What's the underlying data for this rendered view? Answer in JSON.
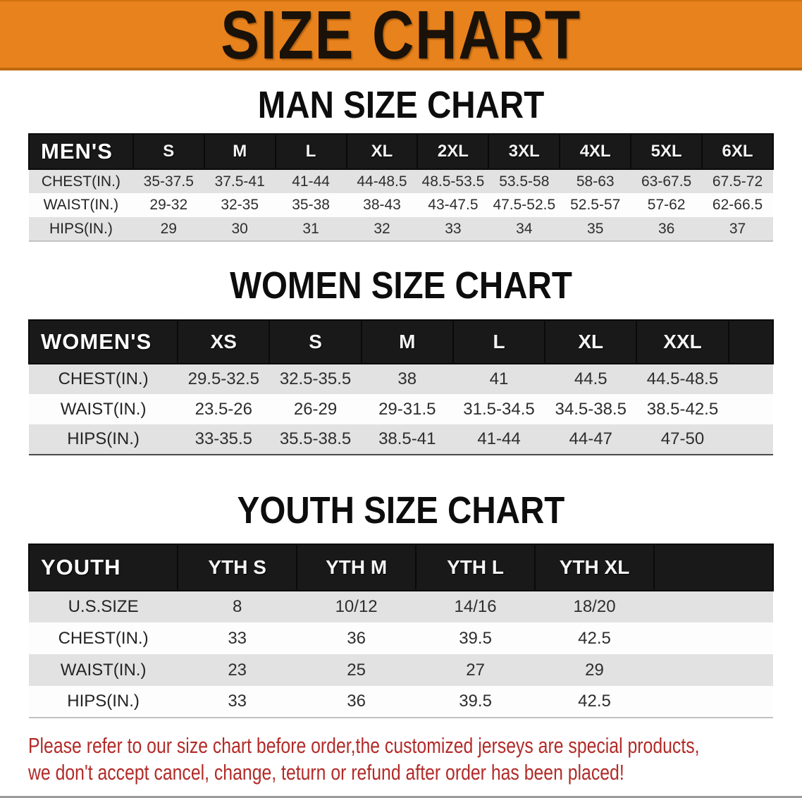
{
  "banner": {
    "title": "SIZE CHART"
  },
  "colors": {
    "banner_orange": "#E8821D",
    "banner_edge": "#BF6A10",
    "table_header_black": "#191919",
    "stripe_gray": "#E2E2E2",
    "stripe_white": "#FDFDFD",
    "disclaimer_red": "#B22B28"
  },
  "sections": [
    {
      "heading": "MAN SIZE CHART",
      "corner_label": "MEN'S",
      "columns": [
        "S",
        "M",
        "L",
        "XL",
        "2XL",
        "3XL",
        "4XL",
        "5XL",
        "6XL"
      ],
      "rows": [
        {
          "label": "CHEST(IN.)",
          "values": [
            "35-37.5",
            "37.5-41",
            "41-44",
            "44-48.5",
            "48.5-53.5",
            "53.5-58",
            "58-63",
            "63-67.5",
            "67.5-72"
          ]
        },
        {
          "label": "WAIST(IN.)",
          "values": [
            "29-32",
            "32-35",
            "35-38",
            "38-43",
            "43-47.5",
            "47.5-52.5",
            "52.5-57",
            "57-62",
            "62-66.5"
          ]
        },
        {
          "label": "HIPS(IN.)",
          "values": [
            "29",
            "30",
            "31",
            "32",
            "33",
            "34",
            "35",
            "36",
            "37"
          ]
        }
      ]
    },
    {
      "heading": "WOMEN SIZE CHART",
      "corner_label": "WOMEN'S",
      "columns": [
        "XS",
        "S",
        "M",
        "L",
        "XL",
        "XXL"
      ],
      "rows": [
        {
          "label": "CHEST(IN.)",
          "values": [
            "29.5-32.5",
            "32.5-35.5",
            "38",
            "41",
            "44.5",
            "44.5-48.5"
          ]
        },
        {
          "label": "WAIST(IN.)",
          "values": [
            "23.5-26",
            "26-29",
            "29-31.5",
            "31.5-34.5",
            "34.5-38.5",
            "38.5-42.5"
          ]
        },
        {
          "label": "HIPS(IN.)",
          "values": [
            "33-35.5",
            "35.5-38.5",
            "38.5-41",
            "41-44",
            "44-47",
            "47-50"
          ]
        }
      ]
    },
    {
      "heading": "YOUTH SIZE CHART",
      "corner_label": "YOUTH",
      "columns": [
        "YTH S",
        "YTH M",
        "YTH L",
        "YTH XL"
      ],
      "rows": [
        {
          "label": "U.S.SIZE",
          "values": [
            "8",
            "10/12",
            "14/16",
            "18/20"
          ]
        },
        {
          "label": "CHEST(IN.)",
          "values": [
            "33",
            "36",
            "39.5",
            "42.5"
          ]
        },
        {
          "label": "WAIST(IN.)",
          "values": [
            "23",
            "25",
            "27",
            "29"
          ]
        },
        {
          "label": "HIPS(IN.)",
          "values": [
            "33",
            "36",
            "39.5",
            "42.5"
          ]
        }
      ]
    }
  ],
  "disclaimer": {
    "line1": "Please refer to our size chart before order,the customized jerseys are special products,",
    "line2": "we don't accept cancel, change, teturn or refund after order has been placed!"
  }
}
